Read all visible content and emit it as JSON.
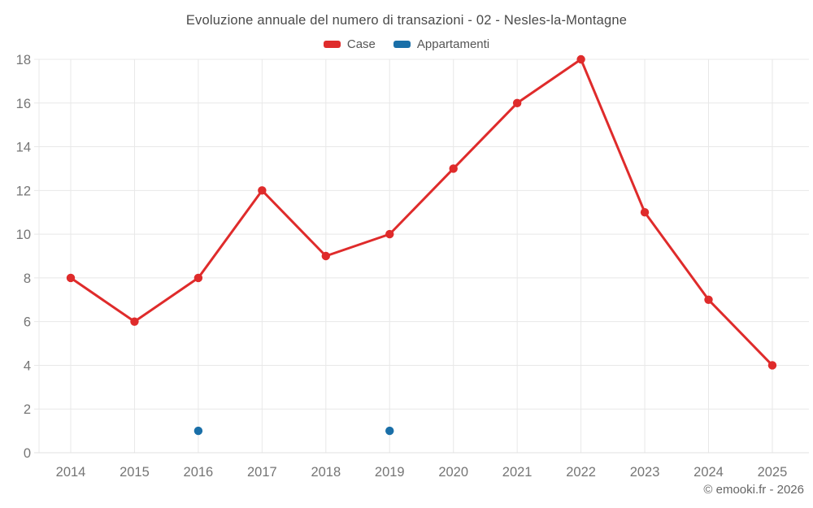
{
  "chart_data": {
    "type": "line",
    "title": "Evoluzione annuale del numero di transazioni - 02 - Nesles-la-Montagne",
    "categories": [
      "2014",
      "2015",
      "2016",
      "2017",
      "2018",
      "2019",
      "2020",
      "2021",
      "2022",
      "2023",
      "2024",
      "2025"
    ],
    "series": [
      {
        "name": "Case",
        "type": "line",
        "color": "#df2b2b",
        "values": [
          8,
          6,
          8,
          12,
          9,
          10,
          13,
          16,
          18,
          11,
          7,
          4
        ]
      },
      {
        "name": "Appartamenti",
        "type": "scatter",
        "color": "#1a6fa8",
        "values": [
          null,
          null,
          1,
          null,
          null,
          1,
          null,
          null,
          null,
          null,
          null,
          null
        ]
      }
    ],
    "ylim": [
      0,
      18
    ],
    "ytick_step": 2,
    "yticks": [
      0,
      2,
      4,
      6,
      8,
      10,
      12,
      14,
      16,
      18
    ],
    "grid": true,
    "legend_position": "top",
    "axis_label_color": "#757575",
    "grid_color": "#e8e8e8",
    "copyright": "© emooki.fr - 2026"
  }
}
